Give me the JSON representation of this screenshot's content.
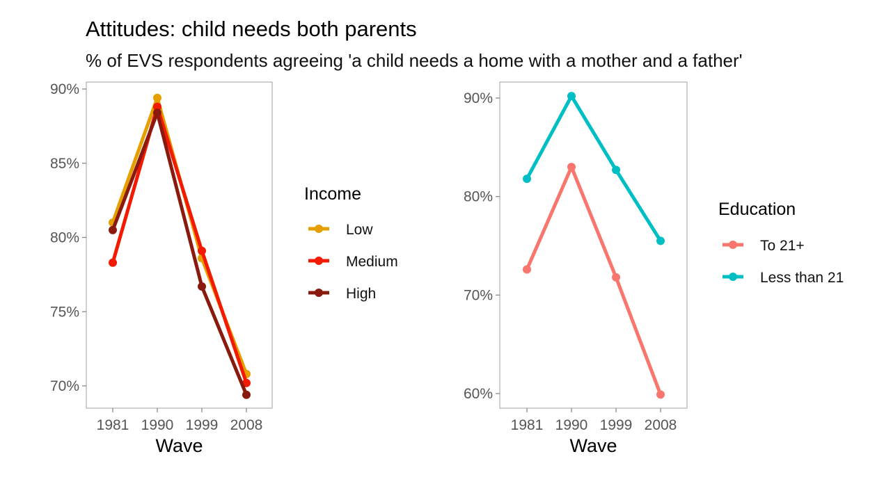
{
  "title": "Attitudes: child needs both parents",
  "subtitle": "% of EVS respondents agreeing 'a child needs a home with a mother and a father'",
  "chart_data": [
    {
      "type": "line",
      "x": [
        "1981",
        "1990",
        "1999",
        "2008"
      ],
      "xlabel": "Wave",
      "ylabel": "",
      "ylim": [
        69.4,
        90.2
      ],
      "yticks": [
        70,
        75,
        80,
        85,
        90
      ],
      "ytick_labels": [
        "70%",
        "75%",
        "80%",
        "85%",
        "90%"
      ],
      "grid": false,
      "legend": {
        "title": "Income",
        "position": "right"
      },
      "series": [
        {
          "name": "Low",
          "color": "#E69F00",
          "values": [
            81.0,
            89.4,
            78.6,
            70.8
          ]
        },
        {
          "name": "Medium",
          "color": "#F21A00",
          "values": [
            78.3,
            88.8,
            79.1,
            70.2
          ]
        },
        {
          "name": "High",
          "color": "#8B1A0E",
          "values": [
            80.5,
            88.4,
            76.7,
            69.4
          ]
        }
      ]
    },
    {
      "type": "line",
      "x": [
        "1981",
        "1990",
        "1999",
        "2008"
      ],
      "xlabel": "Wave",
      "ylabel": "",
      "ylim": [
        58.3,
        91.6
      ],
      "yticks": [
        60,
        70,
        80,
        90
      ],
      "ytick_labels": [
        "60%",
        "70%",
        "80%",
        "90%"
      ],
      "grid": false,
      "legend": {
        "title": "Education",
        "position": "right"
      },
      "series": [
        {
          "name": "To 21+",
          "color": "#F8766D",
          "values": [
            72.6,
            83.0,
            71.8,
            59.9
          ]
        },
        {
          "name": "Less than 21",
          "color": "#00BFC4",
          "values": [
            81.8,
            90.2,
            82.7,
            75.5
          ]
        }
      ]
    }
  ]
}
